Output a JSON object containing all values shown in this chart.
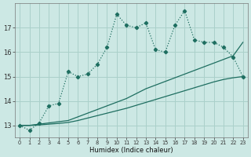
{
  "xlabel": "Humidex (Indice chaleur)",
  "background_color": "#cce8e4",
  "grid_color": "#aad0ca",
  "line_color": "#1e6e60",
  "x_values": [
    0,
    1,
    2,
    3,
    4,
    5,
    6,
    7,
    8,
    9,
    10,
    11,
    12,
    13,
    14,
    15,
    16,
    17,
    18,
    19,
    20,
    21,
    22,
    23
  ],
  "main_line": [
    13.0,
    12.8,
    13.1,
    13.8,
    13.9,
    15.2,
    15.0,
    15.1,
    15.5,
    16.2,
    17.55,
    17.1,
    17.0,
    17.2,
    16.1,
    16.0,
    17.1,
    17.7,
    16.5,
    16.4,
    16.4,
    16.2,
    15.8,
    15.0
  ],
  "line2": [
    13.0,
    13.0,
    13.05,
    13.1,
    13.15,
    13.2,
    13.35,
    13.5,
    13.65,
    13.8,
    13.95,
    14.1,
    14.3,
    14.5,
    14.65,
    14.8,
    14.95,
    15.1,
    15.25,
    15.4,
    15.55,
    15.7,
    15.85,
    16.4
  ],
  "line3": [
    13.0,
    13.0,
    13.02,
    13.05,
    13.08,
    13.12,
    13.2,
    13.3,
    13.4,
    13.5,
    13.6,
    13.7,
    13.82,
    13.94,
    14.06,
    14.18,
    14.3,
    14.42,
    14.54,
    14.66,
    14.78,
    14.88,
    14.95,
    15.0
  ],
  "ylim": [
    12.5,
    18.0
  ],
  "yticks": [
    13,
    14,
    15,
    16,
    17
  ],
  "xlim": [
    -0.5,
    23.5
  ]
}
